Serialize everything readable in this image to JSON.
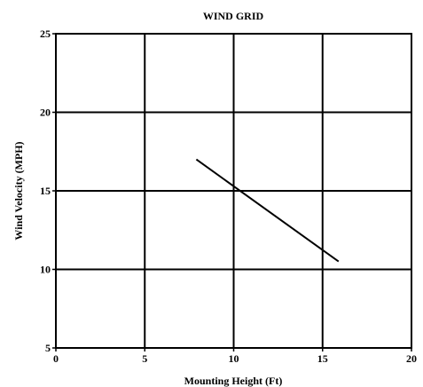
{
  "chart_data": {
    "type": "line",
    "title": "WIND GRID",
    "xlabel": "Mounting Height (Ft)",
    "ylabel": "Wind Velocity (MPH)",
    "xlim": [
      0,
      20
    ],
    "ylim": [
      5,
      25
    ],
    "xticks": [
      "0",
      "5",
      "10",
      "15",
      "20"
    ],
    "yticks": [
      "5",
      "10",
      "15",
      "20",
      "25"
    ],
    "grid": true,
    "series": [
      {
        "x": [
          7.9,
          15.9
        ],
        "y": [
          17.0,
          10.5
        ]
      }
    ]
  }
}
